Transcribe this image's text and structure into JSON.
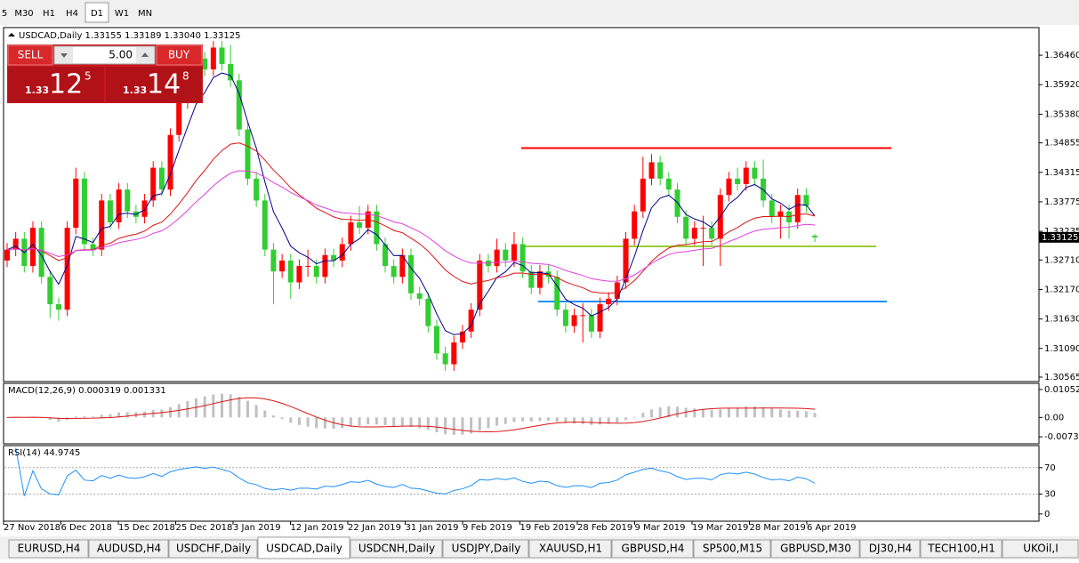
{
  "timeframes": [
    "5",
    "M30",
    "H1",
    "H4",
    "D1",
    "W1",
    "MN"
  ],
  "active_timeframe": "D1",
  "trade_panel": {
    "sell": "SELL",
    "buy": "BUY",
    "volume": "5.00",
    "bid": {
      "prefix": "1.33",
      "big": "12",
      "small": "5"
    },
    "ask": {
      "prefix": "1.33",
      "big": "14",
      "small": "8"
    }
  },
  "chart": {
    "title": "USDCAD,Daily 1.33155 1.33189 1.33040 1.33125",
    "ylim": [
      1.305,
      1.3695
    ],
    "yticks": [
      {
        "value": 1.3646,
        "label": "1.36460"
      },
      {
        "value": 1.3592,
        "label": "1.35920"
      },
      {
        "value": 1.3538,
        "label": "1.35380"
      },
      1.34855,
      1.34315,
      1.33775,
      1.33235,
      {
        "value": 1.3271,
        "label": "1.32710"
      },
      {
        "value": 1.3217,
        "label": "1.32170"
      },
      {
        "value": 1.3163,
        "label": "1.31630"
      },
      {
        "value": 1.3109,
        "label": "1.31090"
      },
      1.30565
    ],
    "current_price": 1.33125,
    "xticks": [
      "27 Nov 2018",
      "6 Dec 2018",
      "15 Dec 2018",
      "25 Dec 2018",
      "3 Jan 2019",
      "12 Jan 2019",
      "22 Jan 2019",
      "31 Jan 2019",
      "9 Feb 2019",
      "19 Feb 2019",
      "28 Feb 2019",
      "9 Mar 2019",
      "19 Mar 2019",
      "28 Mar 2019",
      "6 Apr 2019"
    ],
    "up_color": "#ff0000",
    "down_color": "#32cd32",
    "candles": {
      "open": [
        1.327,
        1.329,
        1.331,
        1.326,
        1.333,
        1.324,
        1.319,
        1.318,
        1.333,
        1.342,
        1.33,
        1.329,
        1.338,
        1.334,
        1.34,
        1.336,
        1.335,
        1.338,
        1.344,
        1.34,
        1.35,
        1.356,
        1.36,
        1.364,
        1.362,
        1.366,
        1.363,
        1.36,
        1.351,
        1.342,
        1.338,
        1.329,
        1.325,
        1.327,
        1.323,
        1.326,
        1.326,
        1.324,
        1.328,
        1.327,
        1.33,
        1.334,
        1.333,
        1.336,
        1.33,
        1.326,
        1.324,
        1.328,
        1.321,
        1.32,
        1.315,
        1.31,
        1.308,
        1.312,
        1.314,
        1.318,
        1.327,
        1.326,
        1.329,
        1.327,
        1.33,
        1.325,
        1.322,
        1.325,
        1.324,
        1.318,
        1.315,
        1.317,
        1.317,
        1.314,
        1.319,
        1.32,
        1.323,
        1.331,
        1.336,
        1.342,
        1.345,
        1.342,
        1.34,
        1.335,
        1.331,
        1.333,
        1.333,
        1.331,
        1.339,
        1.342,
        1.341,
        1.344,
        1.342,
        1.338,
        1.335,
        1.336,
        1.334,
        1.339,
        1.33155
      ],
      "high": [
        1.3302,
        1.3322,
        1.3322,
        1.3342,
        1.3342,
        1.3252,
        1.3202,
        1.3342,
        1.344,
        1.3432,
        1.3312,
        1.3392,
        1.3392,
        1.3412,
        1.3412,
        1.3372,
        1.3392,
        1.3452,
        1.3452,
        1.3512,
        1.3572,
        1.3612,
        1.3652,
        1.3652,
        1.3672,
        1.3672,
        1.3665,
        1.3612,
        1.3522,
        1.3432,
        1.3392,
        1.3302,
        1.3282,
        1.3282,
        1.3272,
        1.329,
        1.3272,
        1.3292,
        1.3292,
        1.3312,
        1.3352,
        1.337,
        1.3372,
        1.3372,
        1.3312,
        1.3272,
        1.3292,
        1.3292,
        1.3222,
        1.3212,
        1.3162,
        1.3112,
        1.3132,
        1.3152,
        1.3192,
        1.3282,
        1.3282,
        1.331,
        1.3302,
        1.3322,
        1.3312,
        1.3262,
        1.3262,
        1.3262,
        1.3252,
        1.3192,
        1.3182,
        1.3192,
        1.3182,
        1.3202,
        1.3212,
        1.3242,
        1.3322,
        1.3372,
        1.346,
        1.3465,
        1.3462,
        1.3432,
        1.3412,
        1.3362,
        1.3342,
        1.3352,
        1.3342,
        1.3402,
        1.3432,
        1.344,
        1.3452,
        1.3452,
        1.3455,
        1.3392,
        1.3372,
        1.3372,
        1.3402,
        1.3402,
        1.33189
      ],
      "low": [
        1.3258,
        1.3278,
        1.3248,
        1.3248,
        1.3228,
        1.3165,
        1.316,
        1.3168,
        1.3318,
        1.3288,
        1.3278,
        1.3278,
        1.3328,
        1.3328,
        1.3348,
        1.3338,
        1.3338,
        1.3368,
        1.3388,
        1.3388,
        1.3488,
        1.3548,
        1.3588,
        1.3608,
        1.3608,
        1.3618,
        1.3588,
        1.3498,
        1.3408,
        1.3368,
        1.3278,
        1.319,
        1.3238,
        1.32,
        1.3218,
        1.324,
        1.3228,
        1.3228,
        1.3258,
        1.3258,
        1.3288,
        1.3318,
        1.3318,
        1.3288,
        1.3248,
        1.3228,
        1.3228,
        1.3198,
        1.3188,
        1.3138,
        1.3088,
        1.3068,
        1.3068,
        1.3108,
        1.3128,
        1.3168,
        1.3248,
        1.3248,
        1.3258,
        1.3258,
        1.3238,
        1.3208,
        1.3208,
        1.3228,
        1.3168,
        1.3138,
        1.3138,
        1.312,
        1.3128,
        1.3128,
        1.3178,
        1.3188,
        1.3218,
        1.3298,
        1.3348,
        1.3408,
        1.3408,
        1.3388,
        1.3338,
        1.3298,
        1.3298,
        1.326,
        1.3298,
        1.326,
        1.3378,
        1.3398,
        1.3398,
        1.3408,
        1.3368,
        1.3338,
        1.331,
        1.331,
        1.3328,
        1.3358,
        1.3304
      ],
      "close": [
        1.329,
        1.331,
        1.326,
        1.333,
        1.324,
        1.319,
        1.318,
        1.333,
        1.342,
        1.33,
        1.329,
        1.338,
        1.334,
        1.34,
        1.336,
        1.335,
        1.338,
        1.344,
        1.34,
        1.35,
        1.356,
        1.36,
        1.364,
        1.362,
        1.366,
        1.363,
        1.36,
        1.351,
        1.342,
        1.338,
        1.329,
        1.325,
        1.327,
        1.323,
        1.326,
        1.326,
        1.324,
        1.328,
        1.327,
        1.33,
        1.334,
        1.333,
        1.336,
        1.33,
        1.326,
        1.324,
        1.328,
        1.321,
        1.32,
        1.315,
        1.31,
        1.308,
        1.312,
        1.314,
        1.318,
        1.327,
        1.326,
        1.329,
        1.327,
        1.33,
        1.325,
        1.322,
        1.325,
        1.324,
        1.318,
        1.315,
        1.317,
        1.317,
        1.314,
        1.319,
        1.32,
        1.323,
        1.331,
        1.336,
        1.342,
        1.345,
        1.342,
        1.34,
        1.335,
        1.331,
        1.333,
        1.333,
        1.331,
        1.339,
        1.342,
        1.341,
        1.344,
        1.342,
        1.338,
        1.335,
        1.336,
        1.334,
        1.339,
        1.337,
        1.33125
      ]
    },
    "levels": [
      {
        "value": 1.3476,
        "color": "#ff0000"
      },
      {
        "value": 1.3296,
        "color": "#9acd32"
      },
      {
        "value": 1.3195,
        "color": "#1e90ff"
      }
    ],
    "moving_averages": [
      {
        "period": 5,
        "color": "#00008b"
      },
      {
        "period": 21,
        "color": "#dc1414"
      },
      {
        "period": 34,
        "color": "#e040e0"
      }
    ]
  },
  "macd": {
    "title": "MACD(12,26,9) 0.000319 0.001331",
    "periods": [
      12,
      26,
      9
    ],
    "ylim": [
      -0.0096,
      0.0125
    ],
    "yticks": [
      0.010525,
      {
        "value": 0,
        "label": "0.00"
      },
      -0.0073
    ],
    "histogram_color": "#c0c0c0",
    "signal_color": "#dc1414"
  },
  "rsi": {
    "title": "RSI(14) 44.9745",
    "period": 14,
    "ylim": [
      -11,
      102
    ],
    "yticks": [
      70,
      30,
      0
    ],
    "color": "#1e90ff"
  },
  "tabs": [
    "EURUSD,H4",
    "AUDUSD,H4",
    "USDCHF,Daily",
    "USDCAD,Daily",
    "USDCNH,Daily",
    "USDJPY,Daily",
    "XAUUSD,H1",
    "GBPUSD,H4",
    "SP500,M15",
    "GBPUSD,M30",
    "DJ30,H4",
    "TECH100,H1",
    "UKOil,I"
  ],
  "active_tab": "USDCAD,Daily"
}
